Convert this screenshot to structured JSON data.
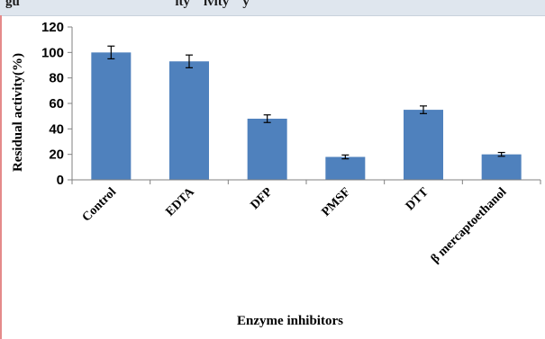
{
  "figure": {
    "caption_partial": "gu                                              ity    ivity    y"
  },
  "chart_data": {
    "type": "bar",
    "categories": [
      "Control",
      "EDTA",
      "DFP",
      "PMSF",
      "DTT",
      "β mercaptoethanol"
    ],
    "values": [
      100,
      93,
      48,
      18,
      55,
      20
    ],
    "errors": [
      5,
      5,
      3,
      1.5,
      3,
      1.5
    ],
    "yticks": [
      "0",
      "20",
      "40",
      "60",
      "80",
      "100",
      "120"
    ],
    "ylim": [
      0,
      120
    ],
    "ylabel": "Residual activity(%)",
    "xlabel": "Enzyme  inhibitors",
    "bar_color": "#4f81bd",
    "grid": false,
    "legend": "none"
  }
}
